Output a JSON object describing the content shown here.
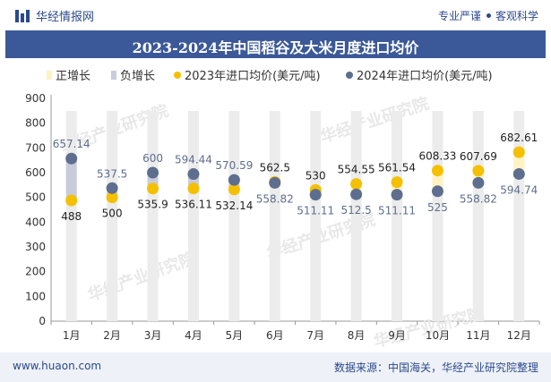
{
  "header": {
    "brand": "华经情报网",
    "tagline_left": "专业严谨",
    "tagline_right": "客观科学"
  },
  "footer": {
    "website": "www.huaon.com",
    "source": "数据来源：中国海关，华经产业研究院整理"
  },
  "watermark": "华经产业研究院",
  "colors": {
    "title_bg": "#3b5998",
    "series_2023": "#f5c000",
    "series_2024": "#5d6e8e",
    "bar_positive": "#fff3c4",
    "bar_negative": "#c8ccda",
    "background_bar": "#ececec"
  },
  "chart_data": {
    "type": "dumbbell",
    "title": "2023-2024年中国稻谷及大米月度进口均价",
    "legend": [
      "正增长",
      "负增长",
      "2023年进口均价(美元/吨)",
      "2024年进口均价(美元/吨)"
    ],
    "categories": [
      "1月",
      "2月",
      "3月",
      "4月",
      "5月",
      "6月",
      "7月",
      "8月",
      "9月",
      "10月",
      "11月",
      "12月"
    ],
    "series": [
      {
        "name": "2023年进口均价(美元/吨)",
        "values": [
          488,
          500,
          535.9,
          536.11,
          532.14,
          562.5,
          530,
          554.55,
          561.54,
          608.33,
          607.69,
          682.61
        ]
      },
      {
        "name": "2024年进口均价(美元/吨)",
        "values": [
          657.14,
          537.5,
          600,
          594.44,
          570.59,
          558.82,
          511.11,
          512.5,
          511.11,
          525,
          558.82,
          594.74
        ]
      }
    ],
    "labels_2023": [
      "488",
      "500",
      "535.9",
      "536.11",
      "532.14",
      "562.5",
      "530",
      "554.55",
      "561.54",
      "608.33",
      "607.69",
      "682.61"
    ],
    "labels_2024": [
      "657.14",
      "537.5",
      "600",
      "594.44",
      "570.59",
      "558.82",
      "511.11",
      "512.5",
      "511.11",
      "525",
      "558.82",
      "594.74"
    ],
    "y_ticks": [
      "0",
      "100",
      "200",
      "300",
      "400",
      "500",
      "600",
      "700",
      "800",
      "900"
    ],
    "ylim": [
      0,
      900
    ],
    "xlabel": "",
    "ylabel": ""
  }
}
